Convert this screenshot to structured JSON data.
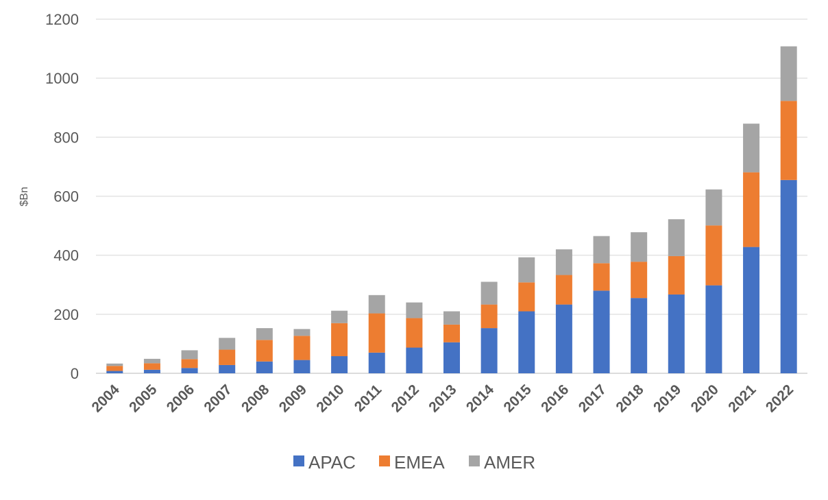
{
  "chart_data": {
    "type": "bar",
    "stacked": true,
    "title": "",
    "xlabel": "",
    "ylabel": "$Bn",
    "ylim": [
      0,
      1200
    ],
    "yticks": [
      0,
      200,
      400,
      600,
      800,
      1000,
      1200
    ],
    "grid": true,
    "legend_position": "bottom",
    "categories": [
      "2004",
      "2005",
      "2006",
      "2007",
      "2008",
      "2009",
      "2010",
      "2011",
      "2012",
      "2013",
      "2014",
      "2015",
      "2016",
      "2017",
      "2018",
      "2019",
      "2020",
      "2021",
      "2022"
    ],
    "series": [
      {
        "name": "APAC",
        "color": "#4472C4",
        "values": [
          8,
          12,
          18,
          28,
          40,
          45,
          58,
          70,
          87,
          105,
          153,
          210,
          233,
          280,
          255,
          267,
          298,
          428,
          655
        ]
      },
      {
        "name": "EMEA",
        "color": "#ED7D31",
        "values": [
          17,
          22,
          30,
          52,
          73,
          82,
          112,
          133,
          100,
          60,
          80,
          98,
          100,
          93,
          123,
          130,
          203,
          253,
          268
        ]
      },
      {
        "name": "AMER",
        "color": "#A5A5A5",
        "values": [
          8,
          15,
          30,
          40,
          40,
          23,
          42,
          62,
          53,
          45,
          77,
          85,
          87,
          92,
          100,
          125,
          122,
          165,
          185
        ]
      }
    ]
  }
}
